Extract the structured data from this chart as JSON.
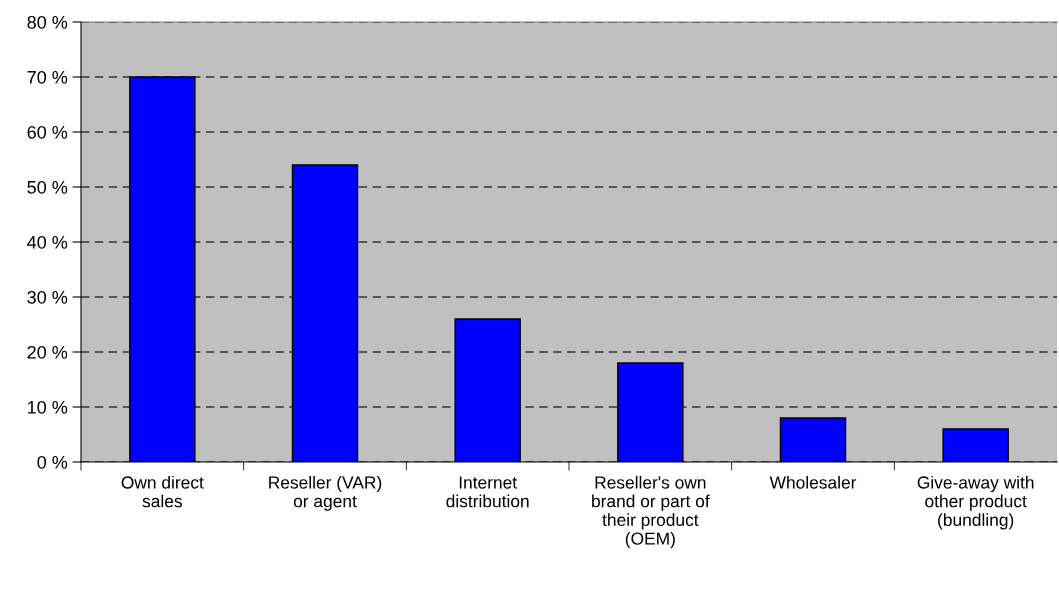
{
  "chart_data": {
    "type": "bar",
    "categories": [
      "Own direct\nsales",
      "Reseller (VAR)\nor agent",
      "Internet\ndistribution",
      "Reseller's own\nbrand or part of\ntheir product\n(OEM)",
      "Wholesaler",
      "Give-away with\nother product\n(bundling)"
    ],
    "values": [
      70,
      54,
      26,
      18,
      8,
      6
    ],
    "color": "#0000ff",
    "ylim": [
      0,
      80
    ],
    "yticks": [
      {
        "value": 0,
        "label": "0 %"
      },
      {
        "value": 10,
        "label": "10 %"
      },
      {
        "value": 20,
        "label": "20 %"
      },
      {
        "value": 30,
        "label": "30 %"
      },
      {
        "value": 40,
        "label": "40 %"
      },
      {
        "value": 50,
        "label": "50 %"
      },
      {
        "value": 60,
        "label": "60 %"
      },
      {
        "value": 70,
        "label": "70 %"
      },
      {
        "value": 80,
        "label": "80 %"
      }
    ],
    "grid": "y",
    "legend": false
  }
}
